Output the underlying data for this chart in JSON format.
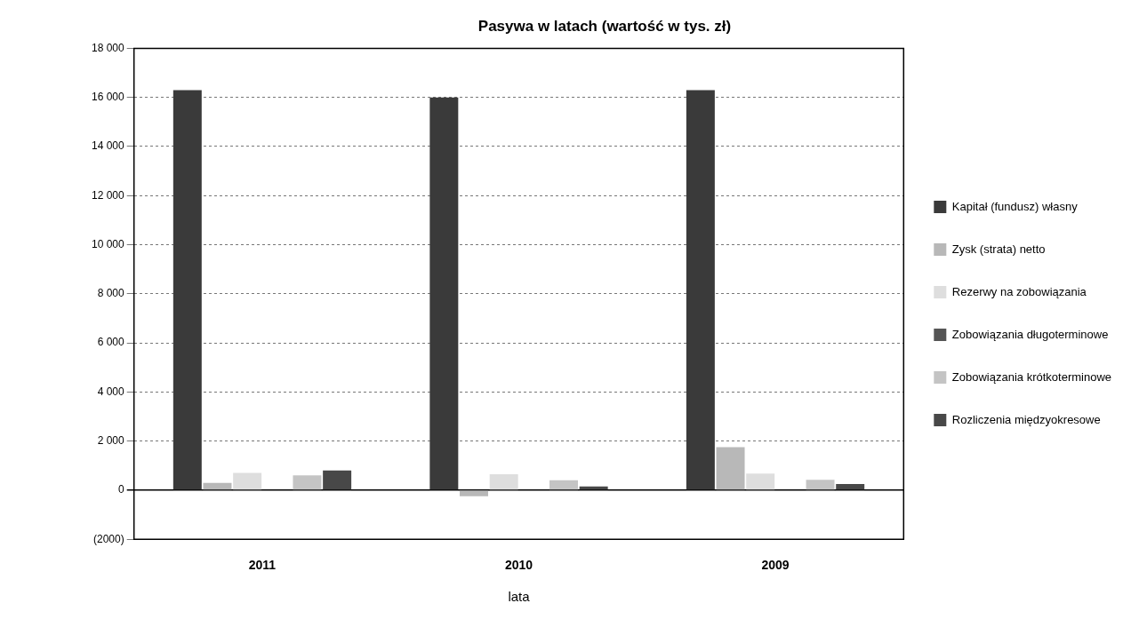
{
  "chart_data": {
    "type": "bar",
    "title": "Pasywa w latach (wartość w tys. zł)",
    "xlabel": "lata",
    "categories": [
      "2011",
      "2010",
      "2009"
    ],
    "series": [
      {
        "name": "Kapitał (fundusz) własny",
        "color": "#3a3a3a",
        "values": [
          16300,
          16000,
          16300
        ]
      },
      {
        "name": "Zysk (strata) netto",
        "color": "#b8b8b8",
        "values": [
          300,
          -250,
          1750
        ]
      },
      {
        "name": "Rezerwy na zobowiązania",
        "color": "#dedede",
        "values": [
          700,
          650,
          680
        ]
      },
      {
        "name": "Zobowiązania długoterminowe",
        "color": "#555555",
        "values": [
          0,
          0,
          0
        ]
      },
      {
        "name": "Zobowiązania krótkoterminowe",
        "color": "#c4c4c4",
        "values": [
          600,
          400,
          420
        ]
      },
      {
        "name": "Rozliczenia międzyokresowe",
        "color": "#484848",
        "values": [
          800,
          150,
          250
        ]
      }
    ],
    "ylim": [
      -2000,
      18000
    ],
    "yticks": [
      {
        "value": -2000,
        "label": "(2000)"
      },
      {
        "value": 0,
        "label": "0"
      },
      {
        "value": 2000,
        "label": "2 000"
      },
      {
        "value": 4000,
        "label": "4 000"
      },
      {
        "value": 6000,
        "label": "6 000"
      },
      {
        "value": 8000,
        "label": "8 000"
      },
      {
        "value": 10000,
        "label": "10 000"
      },
      {
        "value": 12000,
        "label": "12 000"
      },
      {
        "value": 14000,
        "label": "14 000"
      },
      {
        "value": 16000,
        "label": "16 000"
      },
      {
        "value": 18000,
        "label": "18 000"
      }
    ],
    "grid": "y",
    "legend": "right"
  }
}
